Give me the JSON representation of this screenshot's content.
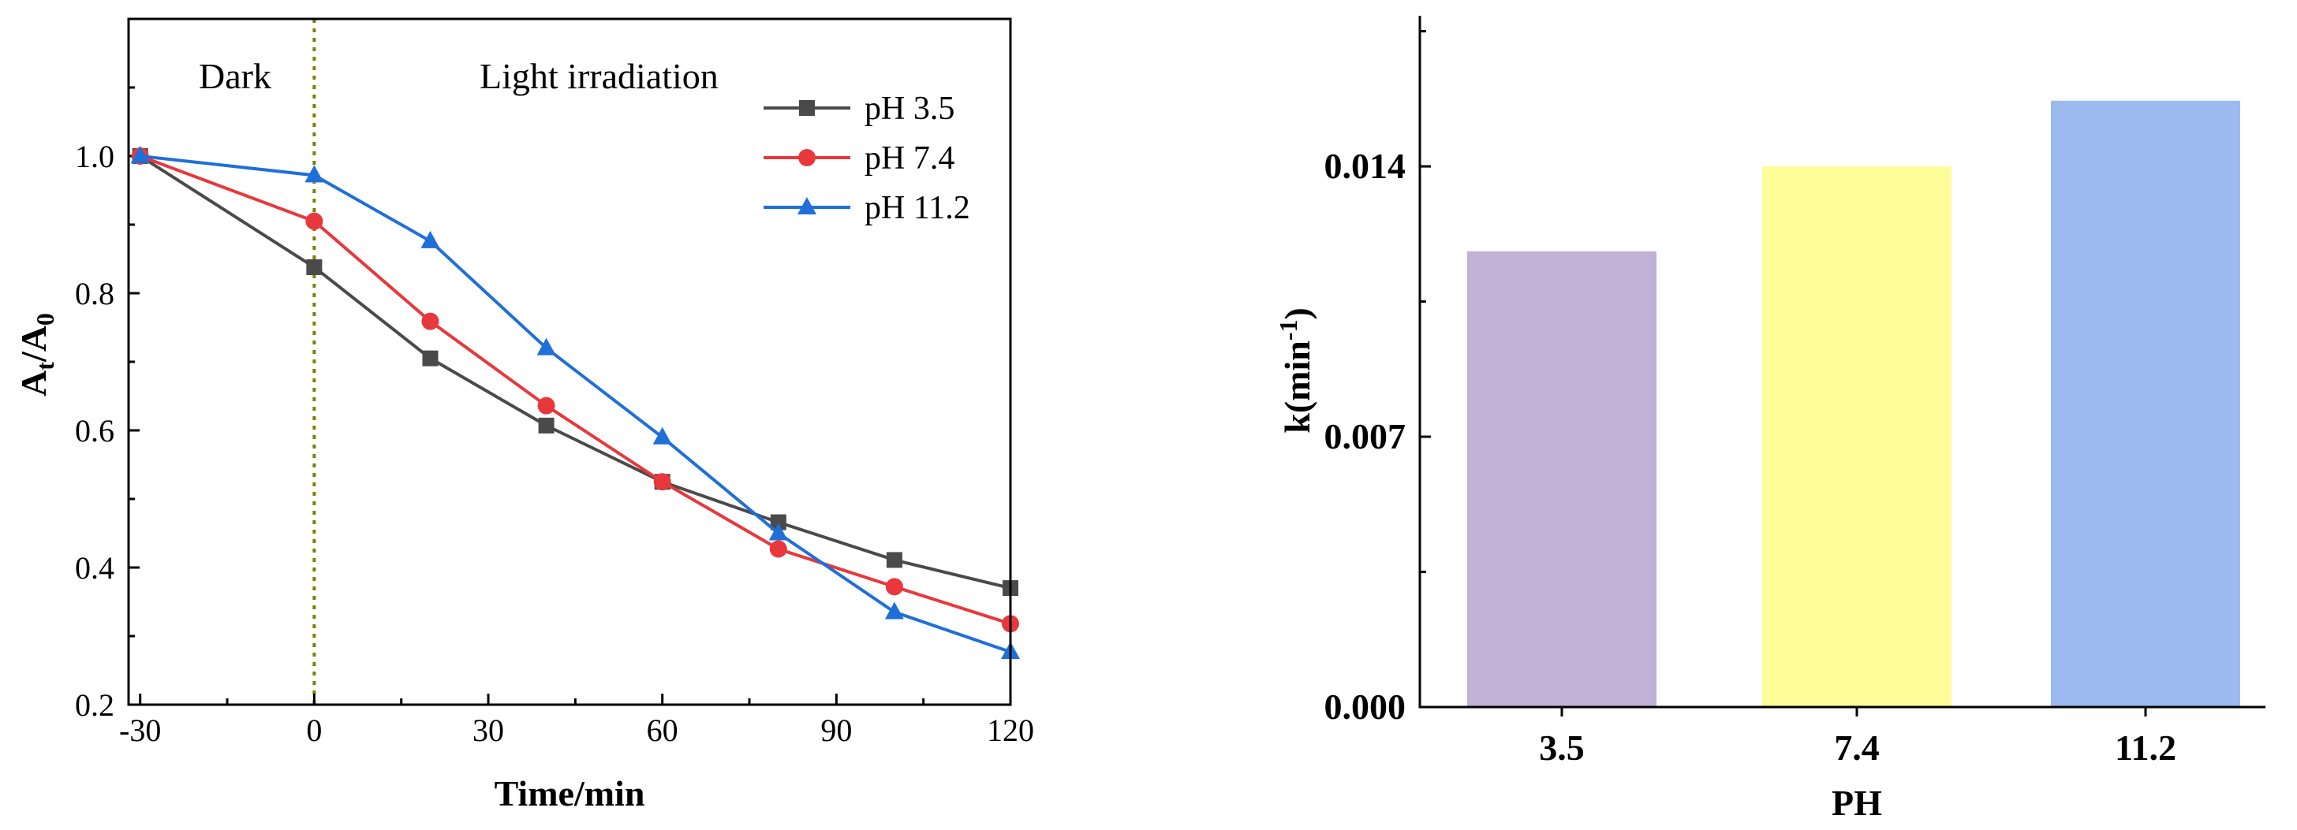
{
  "chart_data": [
    {
      "type": "line",
      "xlabel": "Time/min",
      "ylabel_main": "A",
      "ylabel_sub1": "t",
      "ylabel_sep": "/A",
      "ylabel_sub2": "0",
      "xlim": [
        -32,
        120
      ],
      "ylim": [
        0.2,
        1.2
      ],
      "xticks": [
        -30,
        0,
        30,
        60,
        90,
        120
      ],
      "xtick_labels": [
        "-30",
        "0",
        "30",
        "60",
        "90",
        "120"
      ],
      "yticks": [
        0.2,
        0.4,
        0.6,
        0.8,
        1.0
      ],
      "ytick_labels": [
        "0.2",
        "0.4",
        "0.6",
        "0.8",
        "1.0"
      ],
      "annotations": [
        "Dark",
        "Light irradiation"
      ],
      "divider_x": 0,
      "divider_color": "#7f7f00",
      "legend": "top-right",
      "x": [
        -30,
        0,
        20,
        40,
        60,
        80,
        100,
        120
      ],
      "series": [
        {
          "name": "pH 3.5",
          "color": "#4a4a4a",
          "marker": "square",
          "values": [
            1.0,
            0.838,
            0.705,
            0.607,
            0.525,
            0.466,
            0.411,
            0.37
          ]
        },
        {
          "name": "pH 7.4",
          "color": "#e8383c",
          "marker": "circle",
          "values": [
            1.0,
            0.905,
            0.759,
            0.636,
            0.525,
            0.427,
            0.372,
            0.318
          ]
        },
        {
          "name": "pH 11.2",
          "color": "#1f6fd8",
          "marker": "triangle",
          "values": [
            1.0,
            0.972,
            0.876,
            0.72,
            0.59,
            0.45,
            0.335,
            0.277
          ]
        }
      ]
    },
    {
      "type": "bar",
      "xlabel": "PH",
      "ylabel_main": "k(min",
      "ylabel_sup": "-1",
      "ylabel_close": ")",
      "ylim": [
        0,
        0.0179
      ],
      "yticks": [
        0.0,
        0.007,
        0.014
      ],
      "ytick_labels": [
        "0.000",
        "0.007",
        "0.014"
      ],
      "categories": [
        "3.5",
        "7.4",
        "11.2"
      ],
      "values": [
        0.0118,
        0.014,
        0.0157
      ],
      "colors": [
        "#c0b1d5",
        "#fdfd9a",
        "#9cbaf0"
      ]
    }
  ]
}
